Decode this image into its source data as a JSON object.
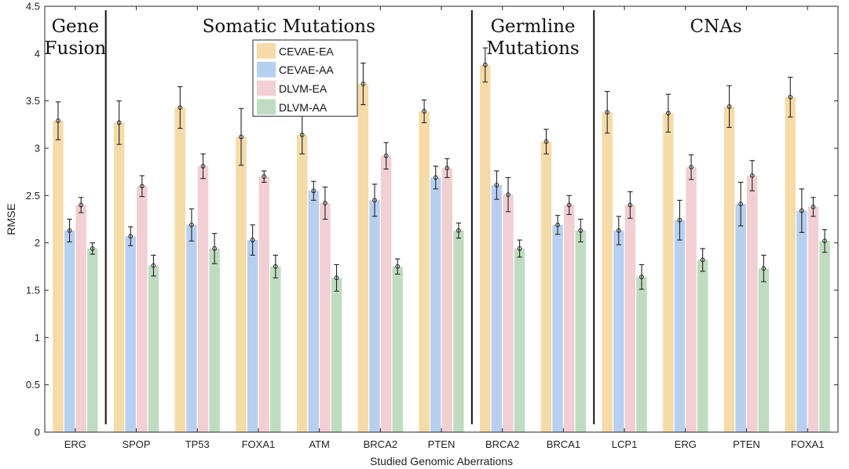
{
  "chart_data": {
    "type": "bar",
    "title": "",
    "xlabel": "Studied Genomic Aberrations",
    "ylabel": "RMSE",
    "ylim": [
      0,
      4.5
    ],
    "yticks": [
      "0",
      "0.5",
      "1",
      "1.5",
      "2",
      "2.5",
      "3",
      "3.5",
      "4",
      "4.5"
    ],
    "grid": false,
    "legend_position": "top-center",
    "categories": [
      "ERG",
      "SPOP",
      "TP53",
      "FOXA1",
      "ATM",
      "BRCA2",
      "PTEN",
      "BRCA2",
      "BRCA1",
      "LCP1",
      "ERG",
      "PTEN",
      "FOXA1"
    ],
    "series": [
      {
        "name": "CEVAE-EA",
        "color": "#f5dba8",
        "values": [
          3.29,
          3.27,
          3.43,
          3.12,
          3.14,
          3.68,
          3.39,
          3.88,
          3.07,
          3.38,
          3.37,
          3.44,
          3.54
        ],
        "errors": [
          0.2,
          0.23,
          0.22,
          0.3,
          0.2,
          0.22,
          0.12,
          0.18,
          0.13,
          0.22,
          0.2,
          0.22,
          0.21
        ]
      },
      {
        "name": "CEVAE-AA",
        "color": "#b8d0f0",
        "values": [
          2.13,
          2.07,
          2.19,
          2.03,
          2.55,
          2.45,
          2.69,
          2.61,
          2.19,
          2.13,
          2.24,
          2.41,
          2.34
        ],
        "errors": [
          0.12,
          0.1,
          0.17,
          0.16,
          0.1,
          0.17,
          0.12,
          0.15,
          0.1,
          0.15,
          0.21,
          0.23,
          0.23
        ]
      },
      {
        "name": "DLVM-EA",
        "color": "#f1cfd3",
        "values": [
          2.4,
          2.6,
          2.81,
          2.7,
          2.42,
          2.92,
          2.79,
          2.51,
          2.4,
          2.4,
          2.8,
          2.71,
          2.38
        ],
        "errors": [
          0.08,
          0.11,
          0.13,
          0.06,
          0.17,
          0.14,
          0.1,
          0.18,
          0.1,
          0.14,
          0.13,
          0.16,
          0.1
        ]
      },
      {
        "name": "DLVM-AA",
        "color": "#bfdcc1",
        "values": [
          1.94,
          1.76,
          1.94,
          1.75,
          1.63,
          1.75,
          2.13,
          1.94,
          2.13,
          1.64,
          1.82,
          1.73,
          2.02
        ],
        "errors": [
          0.06,
          0.11,
          0.16,
          0.12,
          0.14,
          0.08,
          0.08,
          0.09,
          0.12,
          0.13,
          0.12,
          0.14,
          0.12
        ]
      }
    ],
    "groups": [
      {
        "label_lines": [
          "Gene",
          "Fusion"
        ],
        "start_index": 0,
        "end_index": 0
      },
      {
        "label_lines": [
          "Somatic Mutations"
        ],
        "start_index": 1,
        "end_index": 6
      },
      {
        "label_lines": [
          "Germline",
          "Mutations"
        ],
        "start_index": 7,
        "end_index": 8
      },
      {
        "label_lines": [
          "CNAs"
        ],
        "start_index": 9,
        "end_index": 12
      }
    ]
  }
}
